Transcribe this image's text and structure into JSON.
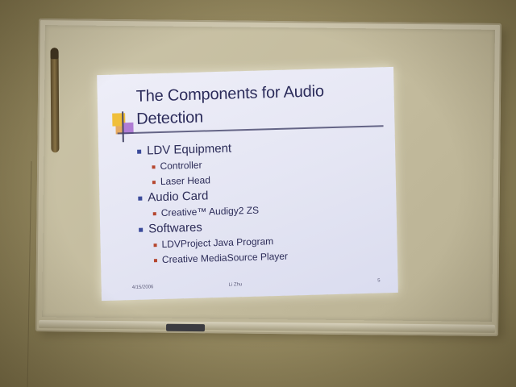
{
  "slide": {
    "title": "The Components for Audio Detection",
    "bullets": [
      {
        "text": "LDV Equipment",
        "subitems": [
          "Controller",
          "Laser Head"
        ]
      },
      {
        "text": "Audio Card",
        "subitems": [
          "Creative™ Audigy2 ZS"
        ]
      },
      {
        "text": "Softwares",
        "subitems": [
          "LDVProject Java Program",
          "Creative MediaSource Player"
        ]
      }
    ],
    "footer": {
      "date": "4/15/2006",
      "author": "Li Zhu",
      "page": "5"
    }
  },
  "colors": {
    "wall": "#968a61",
    "board": "#c4bc9e",
    "slide_background": "#e4e5f3",
    "slide_text": "#2c2c58",
    "logo_yellow": "#f0bf3a",
    "logo_purple": "#b07dd4",
    "sub_bullet": "#b5462e"
  }
}
